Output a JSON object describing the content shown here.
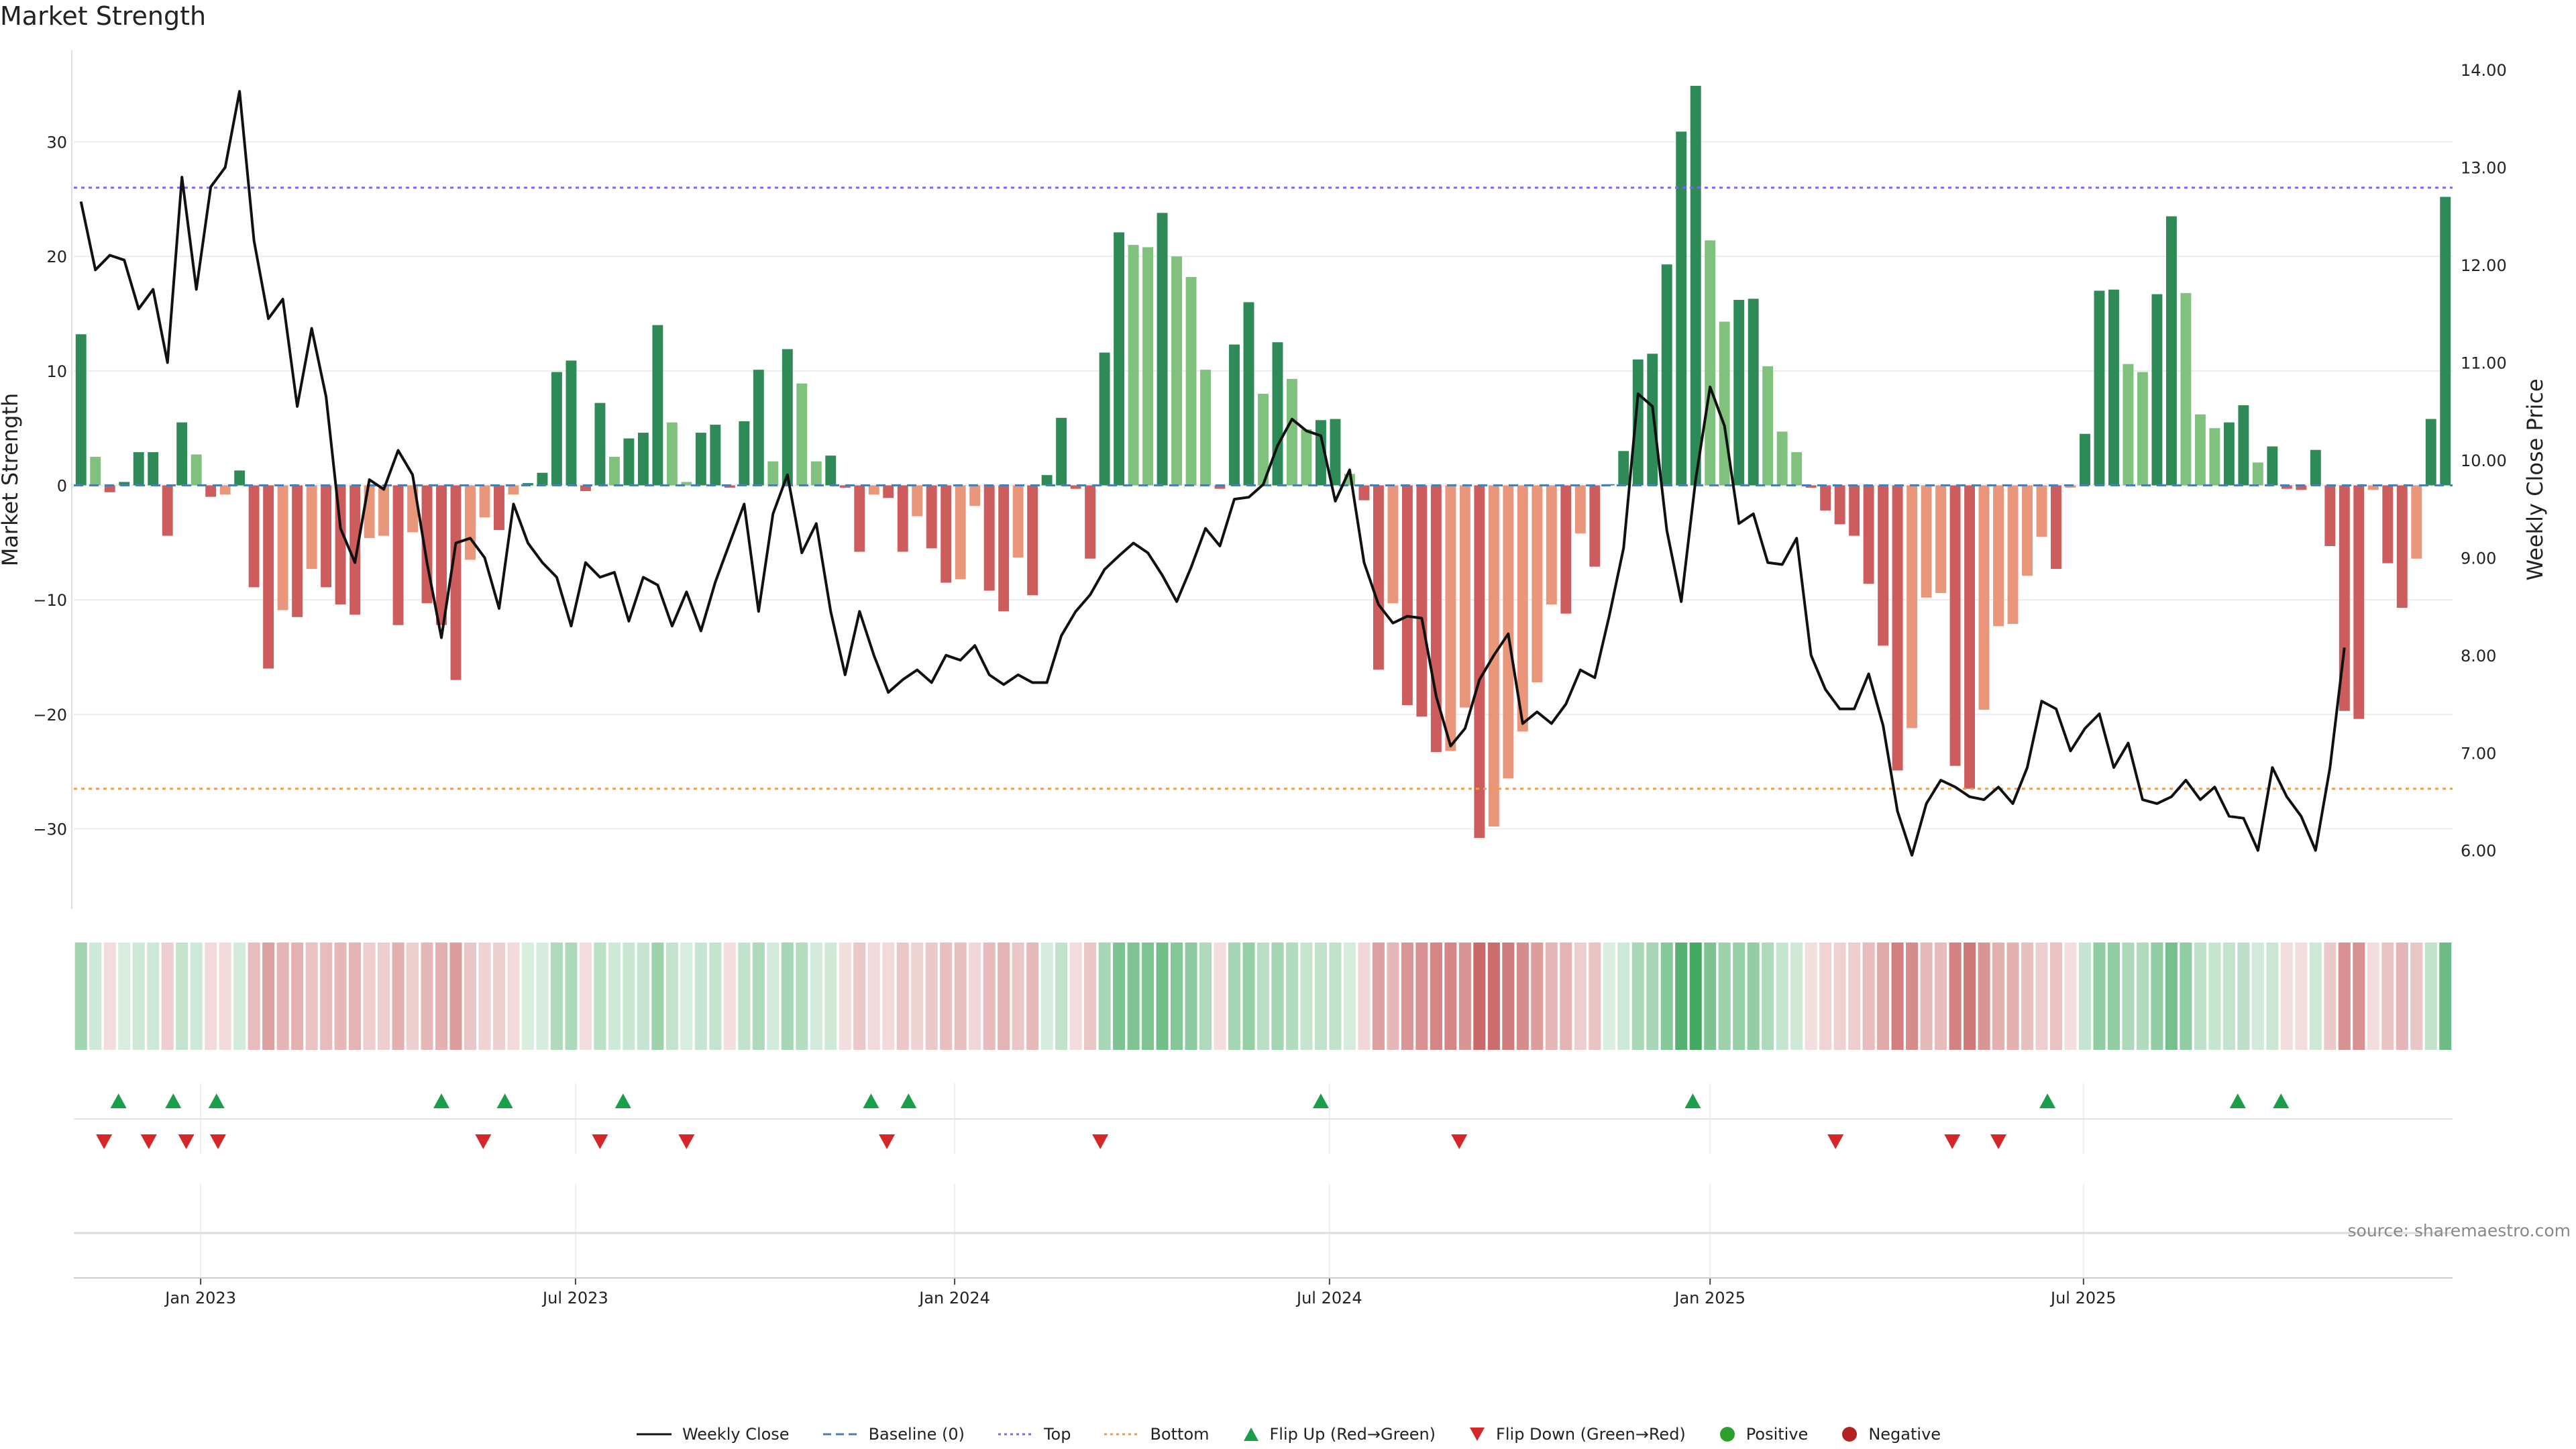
{
  "page": {
    "title": "Market Strength",
    "source": "source: sharemaestro.com"
  },
  "colors": {
    "pos_strong": "#2e8b57",
    "pos_weak": "#7fc17d",
    "neg_strong": "#cd5c5c",
    "neg_weak": "#e9967a",
    "close_line": "#111111",
    "baseline": "#4a7fb5",
    "top_line": "#7b68ee",
    "bottom_line": "#e8a04f",
    "flip_up": "#1a9e4a",
    "flip_down": "#d62728",
    "positive": "#2ca02c",
    "negative": "#b22222"
  },
  "legend": [
    {
      "key": "close",
      "label": "Weekly Close",
      "icon": "solid-line-icon"
    },
    {
      "key": "baseline",
      "label": "Baseline (0)",
      "icon": "dashed-line-icon"
    },
    {
      "key": "top",
      "label": "Top",
      "icon": "dotted-line-icon"
    },
    {
      "key": "bottom",
      "label": "Bottom",
      "icon": "dotted-line-icon"
    },
    {
      "key": "flip_up",
      "label": "Flip Up (Red→Green)",
      "icon": "triangle-up-icon"
    },
    {
      "key": "flip_down",
      "label": "Flip Down (Green→Red)",
      "icon": "triangle-down-icon"
    },
    {
      "key": "positive",
      "label": "Positive",
      "icon": "circle-icon"
    },
    {
      "key": "negative",
      "label": "Negative",
      "icon": "circle-icon"
    }
  ],
  "chart_data": {
    "type": "bar",
    "title": "Market Strength",
    "ylabel": "Market Strength",
    "y2label": "Weekly Close Price",
    "ylim": [
      -37,
      38
    ],
    "y2lim": [
      5.4,
      14.2
    ],
    "yticks": [
      -30,
      -20,
      -10,
      0,
      10,
      20,
      30
    ],
    "y2ticks": [
      "6.00",
      "7.00",
      "8.00",
      "9.00",
      "10.00",
      "11.00",
      "12.00",
      "13.00",
      "14.00"
    ],
    "xticks": [
      {
        "label": "Jan 2023",
        "week": 8.3
      },
      {
        "label": "Jul 2023",
        "week": 34.3
      },
      {
        "label": "Jan 2024",
        "week": 60.6
      },
      {
        "label": "Jul 2024",
        "week": 86.6
      },
      {
        "label": "Jan 2025",
        "week": 113.0
      },
      {
        "label": "Jul 2025",
        "week": 138.9
      }
    ],
    "top_level": 26,
    "bottom_level": -26.5,
    "grid": true,
    "legend_position": "bottom",
    "strength": [
      13.2,
      2.5,
      -0.6,
      0.3,
      2.9,
      2.9,
      -4.4,
      5.5,
      2.7,
      -1.0,
      -0.8,
      1.3,
      -8.9,
      -16.0,
      -10.9,
      -11.5,
      -7.3,
      -8.9,
      -10.4,
      -11.3,
      -4.6,
      -4.4,
      -12.2,
      -4.1,
      -10.3,
      -12.2,
      -17.0,
      -6.5,
      -2.8,
      -3.9,
      -0.8,
      0.2,
      1.1,
      9.9,
      10.9,
      -0.5,
      7.2,
      2.5,
      4.1,
      4.6,
      14.0,
      5.5,
      0.3,
      4.6,
      5.3,
      -0.2,
      5.6,
      10.1,
      2.1,
      11.9,
      8.9,
      2.1,
      2.6,
      -0.2,
      -5.8,
      -0.8,
      -1.1,
      -5.8,
      -2.7,
      -5.5,
      -8.5,
      -8.2,
      -1.8,
      -9.2,
      -11.0,
      -6.3,
      -9.6,
      0.9,
      5.9,
      -0.3,
      -6.4,
      11.6,
      22.1,
      21.0,
      20.8,
      23.8,
      20.0,
      18.2,
      10.1,
      -0.3,
      12.3,
      16.0,
      8.0,
      12.5,
      9.3,
      4.9,
      5.7,
      5.8,
      1.0,
      -1.3,
      -16.1,
      -10.3,
      -19.2,
      -20.2,
      -23.3,
      -23.2,
      -19.4,
      -30.8,
      -29.8,
      -25.6,
      -21.5,
      -17.2,
      -10.4,
      -11.2,
      -4.2,
      -7.1,
      0.1,
      3.0,
      11.0,
      11.5,
      19.3,
      30.9,
      34.9,
      21.4,
      14.3,
      16.2,
      16.3,
      10.4,
      4.7,
      2.9,
      -0.2,
      -2.2,
      -3.4,
      -4.4,
      -8.6,
      -14.0,
      -24.9,
      -21.2,
      -9.8,
      -9.4,
      -24.5,
      -26.5,
      -19.6,
      -12.3,
      -12.1,
      -7.9,
      -4.5,
      -7.3,
      -0.2,
      4.5,
      17.0,
      17.1,
      10.6,
      9.9,
      16.7,
      23.5,
      16.8,
      6.2,
      5.0,
      5.5,
      7.0,
      2.0,
      3.4,
      -0.3,
      -0.4,
      3.1,
      -5.3,
      -19.7,
      -20.4,
      -0.4,
      -6.8,
      -10.7,
      -6.4,
      5.8,
      25.2
    ],
    "close": [
      12.65,
      11.95,
      12.1,
      12.05,
      11.55,
      11.75,
      11.0,
      12.9,
      11.75,
      12.8,
      13.0,
      13.78,
      12.25,
      11.45,
      11.65,
      10.55,
      11.35,
      10.65,
      9.3,
      8.95,
      9.8,
      9.7,
      10.1,
      9.85,
      8.95,
      8.18,
      9.15,
      9.2,
      9.0,
      8.48,
      9.55,
      9.15,
      8.95,
      8.8,
      8.3,
      8.95,
      8.8,
      8.85,
      8.35,
      8.8,
      8.72,
      8.3,
      8.65,
      8.25,
      8.75,
      9.15,
      9.55,
      8.45,
      9.45,
      9.85,
      9.05,
      9.35,
      8.45,
      7.8,
      8.45,
      8.0,
      7.62,
      7.75,
      7.85,
      7.72,
      8.0,
      7.95,
      8.1,
      7.8,
      7.7,
      7.8,
      7.72,
      7.72,
      8.2,
      8.45,
      8.62,
      8.88,
      9.02,
      9.15,
      9.05,
      8.82,
      8.55,
      8.9,
      9.3,
      9.12,
      9.6,
      9.62,
      9.75,
      10.15,
      10.42,
      10.3,
      10.25,
      9.58,
      9.9,
      8.95,
      8.52,
      8.33,
      8.4,
      8.38,
      7.58,
      7.07,
      7.25,
      7.75,
      8.0,
      8.22,
      7.3,
      7.42,
      7.3,
      7.5,
      7.85,
      7.77,
      8.4,
      9.1,
      10.68,
      10.55,
      9.28,
      8.55,
      9.8,
      10.75,
      10.35,
      9.35,
      9.45,
      8.95,
      8.93,
      9.2,
      8.0,
      7.65,
      7.45,
      7.45,
      7.81,
      7.28,
      6.4,
      5.95,
      6.48,
      6.72,
      6.65,
      6.55,
      6.52,
      6.65,
      6.48,
      6.85,
      7.53,
      7.45,
      7.02,
      7.25,
      7.4,
      6.85,
      7.1,
      6.52,
      6.48,
      6.55,
      6.72,
      6.52,
      6.65,
      6.35,
      6.33,
      6.0,
      6.85,
      6.55,
      6.35,
      6.0,
      6.85,
      8.08
    ],
    "flip_up_weeks": [
      2.6,
      6.4,
      9.4,
      25.0,
      29.4,
      37.6,
      54.8,
      57.4,
      86.0,
      111.8,
      136.4,
      149.6,
      152.6
    ],
    "flip_down_weeks": [
      1.6,
      4.7,
      7.3,
      9.5,
      27.9,
      36.0,
      42.0,
      55.9,
      70.7,
      95.6,
      121.7,
      129.8,
      133.0
    ]
  }
}
